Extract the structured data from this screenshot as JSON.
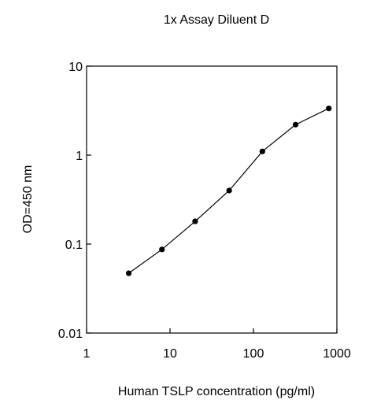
{
  "chart_data": {
    "type": "line",
    "title": "1x Assay Diluent D",
    "xlabel": "Human TSLP concentration (pg/ml)",
    "ylabel": "OD=450 nm",
    "x_scale": "log",
    "y_scale": "log",
    "xlim": [
      1,
      1000
    ],
    "ylim": [
      0.01,
      10
    ],
    "x_ticks": [
      1,
      10,
      100,
      1000
    ],
    "x_tick_labels": [
      "1",
      "10",
      "100",
      "1000"
    ],
    "y_ticks": [
      0.01,
      0.1,
      1,
      10
    ],
    "y_tick_labels": [
      "0.01",
      "0.1",
      "1",
      "10"
    ],
    "grid": false,
    "legend": "none",
    "series": [
      {
        "color": "#000000",
        "marker": "circle",
        "x": [
          3.2,
          8.0,
          20.0,
          51.2,
          128.0,
          320.0,
          800.0
        ],
        "y": [
          0.047,
          0.087,
          0.18,
          0.4,
          1.1,
          2.2,
          3.35
        ]
      }
    ]
  }
}
